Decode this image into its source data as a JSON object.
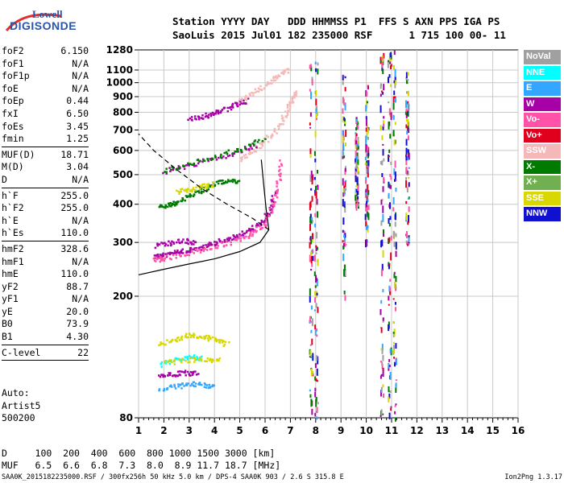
{
  "logo": {
    "line1": "Lowell",
    "line2": "DIGISONDE"
  },
  "header": {
    "line1": "Station YYYY DAY   DDD HHMMSS P1  FFS S AXN PPS IGA PS",
    "line2": "SaoLuis 2015 Jul01 182 235000 RSF      1 715 100 00- 11"
  },
  "params": [
    {
      "label": "foF2",
      "value": "6.150"
    },
    {
      "label": "foF1",
      "value": "N/A"
    },
    {
      "label": "foF1p",
      "value": "N/A"
    },
    {
      "label": "foE",
      "value": "N/A"
    },
    {
      "label": "foEp",
      "value": "0.44"
    },
    {
      "label": "fxI",
      "value": "6.50"
    },
    {
      "label": "foEs",
      "value": "3.45"
    },
    {
      "label": "fmin",
      "value": "1.25",
      "sep": true
    },
    {
      "label": "MUF(D)",
      "value": "18.71"
    },
    {
      "label": "M(D)",
      "value": "3.04"
    },
    {
      "label": "D",
      "value": "N/A",
      "sep": true
    },
    {
      "label": "h`F",
      "value": "255.0"
    },
    {
      "label": "h`F2",
      "value": "255.0"
    },
    {
      "label": "h`E",
      "value": "N/A"
    },
    {
      "label": "h`Es",
      "value": "110.0",
      "sep": true
    },
    {
      "label": "hmF2",
      "value": "328.6"
    },
    {
      "label": "hmF1",
      "value": "N/A"
    },
    {
      "label": "hmE",
      "value": "110.0"
    },
    {
      "label": "yF2",
      "value": "88.7"
    },
    {
      "label": "yF1",
      "value": "N/A"
    },
    {
      "label": "yE",
      "value": "20.0"
    },
    {
      "label": "B0",
      "value": "73.9"
    },
    {
      "label": "B1",
      "value": "4.30",
      "sep": true
    },
    {
      "label": "C-level",
      "value": "22",
      "sep": true
    }
  ],
  "auto": {
    "line1": "Auto:",
    "line2": "Artist5",
    "line3": "500200"
  },
  "legend": [
    {
      "label": "NoVal",
      "color": "#a0a0a0"
    },
    {
      "label": "NNE",
      "color": "#00ffff"
    },
    {
      "label": "E",
      "color": "#33a6ff"
    },
    {
      "label": "W",
      "color": "#a600a6"
    },
    {
      "label": "Vo-",
      "color": "#ff52a8"
    },
    {
      "label": "Vo+",
      "color": "#e0001e"
    },
    {
      "label": "SSW",
      "color": "#f5b8b8"
    },
    {
      "label": "X-",
      "color": "#007a00"
    },
    {
      "label": "X+",
      "color": "#70b050"
    },
    {
      "label": "SSE",
      "color": "#d8d800"
    },
    {
      "label": "NNW",
      "color": "#1010d0"
    }
  ],
  "bottom": {
    "line1": "D     100  200  400  600  800 1000 1500 3000 [km]",
    "line2": "MUF   6.5  6.6  6.8  7.3  8.0  8.9 11.7 18.7 [MHz]"
  },
  "footer": {
    "left": "SAA0K_2015182235000.RSF / 300fx256h 50 kHz 5.0 km / DPS-4 SAA0K 903 / 2.6 S 315.8 E",
    "right": "Ion2Png 1.3.17"
  },
  "chart_data": {
    "type": "scatter",
    "xlim": [
      1,
      16
    ],
    "ylim": [
      80,
      1280
    ],
    "x_ticks": [
      1,
      2,
      3,
      4,
      5,
      6,
      7,
      8,
      9,
      10,
      11,
      12,
      13,
      14,
      15,
      16
    ],
    "y_ticks": [
      80,
      200,
      300,
      400,
      500,
      600,
      700,
      800,
      900,
      1000,
      1100,
      1280
    ],
    "y_scale": "log",
    "grid": true,
    "legend_position": "right",
    "traces": [
      {
        "legend": "X-",
        "points": [
          [
            1.8,
            395
          ],
          [
            2.2,
            400
          ],
          [
            2.5,
            410
          ],
          [
            3.0,
            430
          ],
          [
            3.5,
            450
          ],
          [
            4.0,
            470
          ],
          [
            4.5,
            480
          ],
          [
            5.0,
            480
          ]
        ]
      },
      {
        "legend": "W",
        "points": [
          [
            1.6,
            270
          ],
          [
            2.0,
            275
          ],
          [
            2.5,
            280
          ],
          [
            3.0,
            285
          ],
          [
            3.5,
            290
          ],
          [
            4.0,
            300
          ],
          [
            4.5,
            310
          ],
          [
            5.0,
            320
          ],
          [
            5.5,
            335
          ],
          [
            5.9,
            355
          ],
          [
            6.2,
            390
          ],
          [
            6.4,
            450
          ]
        ]
      },
      {
        "legend": "Vo-",
        "points": [
          [
            1.6,
            265
          ],
          [
            2.0,
            268
          ],
          [
            3.0,
            278
          ],
          [
            4.0,
            292
          ],
          [
            5.0,
            310
          ],
          [
            5.5,
            325
          ],
          [
            6.0,
            350
          ],
          [
            6.3,
            400
          ],
          [
            6.5,
            470
          ],
          [
            6.6,
            560
          ]
        ]
      },
      {
        "legend": "SSW",
        "points": [
          [
            5.0,
            560
          ],
          [
            5.5,
            600
          ],
          [
            6.0,
            650
          ],
          [
            6.5,
            720
          ],
          [
            6.8,
            800
          ],
          [
            7.0,
            870
          ],
          [
            7.2,
            940
          ]
        ]
      },
      {
        "legend": "W",
        "points": [
          [
            2.0,
            515
          ],
          [
            3.0,
            540
          ],
          [
            4.0,
            570
          ],
          [
            5.0,
            600
          ],
          [
            5.6,
            630
          ]
        ]
      },
      {
        "legend": "W",
        "points": [
          [
            3.0,
            760
          ],
          [
            3.5,
            780
          ],
          [
            4.0,
            800
          ],
          [
            4.5,
            830
          ],
          [
            5.0,
            860
          ],
          [
            5.3,
            880
          ]
        ]
      },
      {
        "legend": "SSW",
        "points": [
          [
            5.0,
            880
          ],
          [
            5.5,
            930
          ],
          [
            6.0,
            990
          ],
          [
            6.5,
            1060
          ],
          [
            6.9,
            1110
          ]
        ]
      },
      {
        "legend": "X-",
        "points": [
          [
            2.0,
            520
          ],
          [
            3.0,
            545
          ],
          [
            4.0,
            575
          ],
          [
            5.0,
            610
          ],
          [
            6.0,
            660
          ]
        ]
      },
      {
        "legend": "SSE",
        "points": [
          [
            2.5,
            440
          ],
          [
            3.0,
            450
          ],
          [
            3.5,
            460
          ],
          [
            4.0,
            470
          ]
        ]
      },
      {
        "legend": "W",
        "points": [
          [
            1.6,
            295
          ],
          [
            2.2,
            300
          ],
          [
            2.8,
            305
          ],
          [
            3.2,
            300
          ]
        ]
      },
      {
        "legend": "SSE",
        "points": [
          [
            1.8,
            140
          ],
          [
            2.5,
            145
          ],
          [
            3.0,
            150
          ],
          [
            3.5,
            148
          ],
          [
            4.0,
            145
          ],
          [
            4.5,
            140
          ]
        ]
      },
      {
        "legend": "NNE",
        "points": [
          [
            1.8,
            120
          ],
          [
            2.5,
            125
          ],
          [
            3.0,
            128
          ],
          [
            3.5,
            126
          ]
        ]
      },
      {
        "legend": "E",
        "points": [
          [
            1.8,
            100
          ],
          [
            2.5,
            102
          ],
          [
            3.0,
            104
          ],
          [
            3.5,
            103
          ],
          [
            4.0,
            102
          ]
        ]
      },
      {
        "legend": "W",
        "points": [
          [
            1.8,
            110
          ],
          [
            2.3,
            112
          ],
          [
            2.8,
            113
          ],
          [
            3.3,
            112
          ]
        ]
      },
      {
        "legend": "SSE",
        "points": [
          [
            2.0,
            122
          ],
          [
            2.8,
            124
          ],
          [
            3.6,
            125
          ],
          [
            4.2,
            124
          ]
        ]
      }
    ],
    "vertical_bands": [
      {
        "x": 7.8,
        "from": 80,
        "to": 1280
      },
      {
        "x": 8.0,
        "from": 80,
        "to": 1280
      },
      {
        "x": 9.1,
        "from": 200,
        "to": 1100
      },
      {
        "x": 10.6,
        "from": 80,
        "to": 1280
      },
      {
        "x": 10.9,
        "from": 80,
        "to": 1280
      },
      {
        "x": 11.1,
        "from": 80,
        "to": 1280
      },
      {
        "x": 11.6,
        "from": 300,
        "to": 1100
      },
      {
        "x": 10.0,
        "from": 300,
        "to": 1000
      },
      {
        "x": 9.6,
        "from": 400,
        "to": 800
      }
    ],
    "profile_curve": [
      [
        6.15,
        330
      ],
      [
        5.8,
        300
      ],
      [
        5.0,
        280
      ],
      [
        4.0,
        265
      ],
      [
        3.0,
        255
      ],
      [
        2.0,
        245
      ],
      [
        1.0,
        235
      ]
    ],
    "profile_upper": [
      [
        6.15,
        330
      ],
      [
        6.05,
        380
      ],
      [
        5.95,
        460
      ],
      [
        5.85,
        560
      ]
    ],
    "topside_dashed": [
      [
        6.15,
        330
      ],
      [
        5.5,
        360
      ],
      [
        4.5,
        400
      ],
      [
        3.5,
        450
      ],
      [
        2.5,
        520
      ],
      [
        1.6,
        600
      ],
      [
        1.0,
        680
      ]
    ]
  }
}
